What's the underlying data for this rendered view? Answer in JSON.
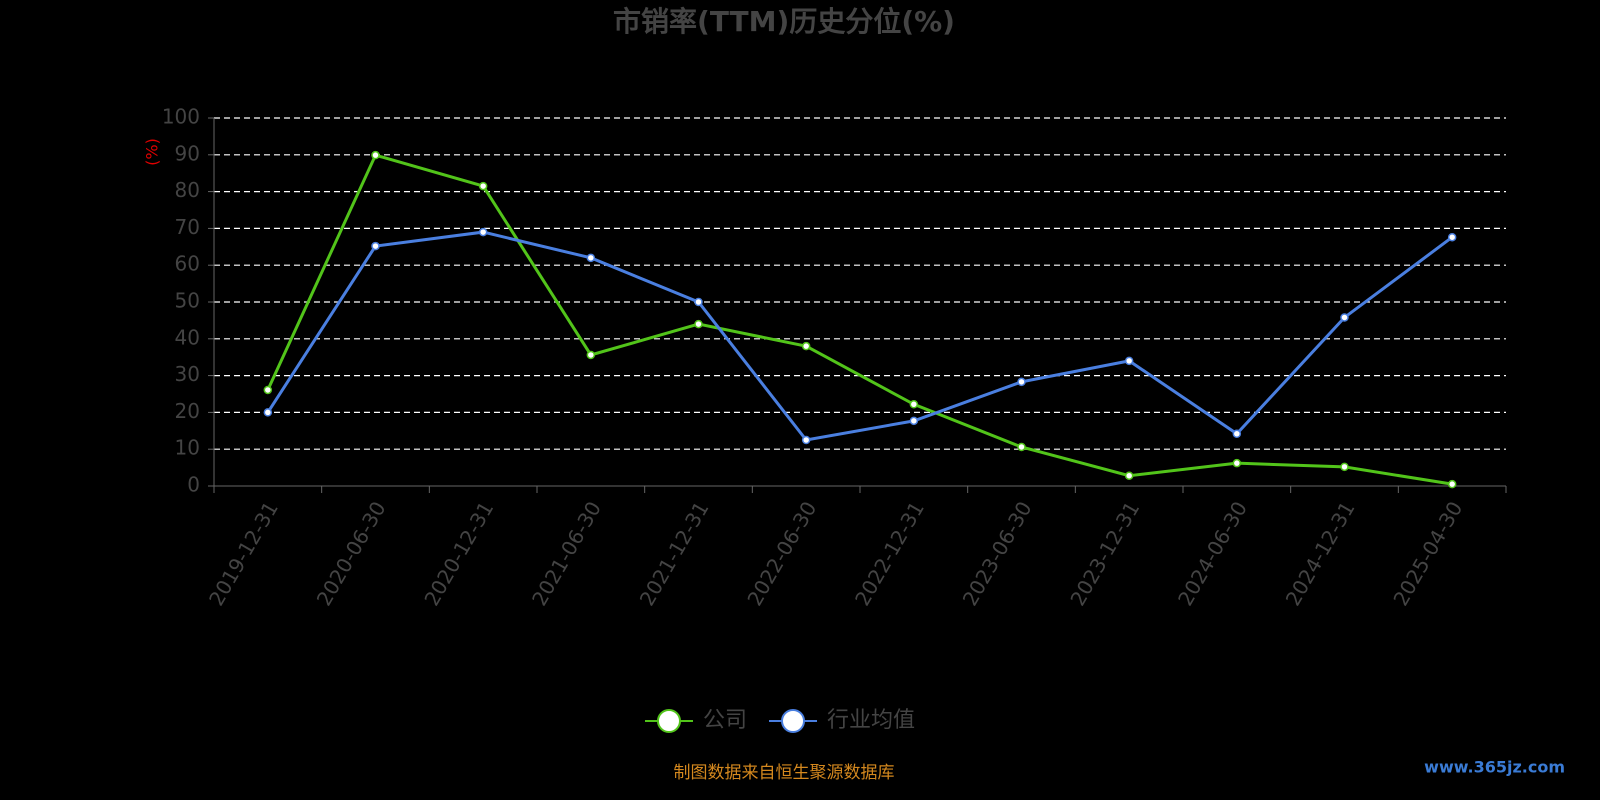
{
  "chart_data": {
    "type": "line",
    "title": "市销率(TTM)历史分位(%)",
    "y_label": "(%)",
    "categories": [
      "2019-12-31",
      "2020-06-30",
      "2020-12-31",
      "2021-06-30",
      "2021-12-31",
      "2022-06-30",
      "2022-12-31",
      "2023-06-30",
      "2023-12-31",
      "2024-06-30",
      "2024-12-31",
      "2025-04-30"
    ],
    "series": [
      {
        "name": "公司",
        "color": "#52c41a",
        "values": [
          26.1,
          89.9,
          81.5,
          35.6,
          44.0,
          38.0,
          22.2,
          10.6,
          2.8,
          6.2,
          5.2,
          0.5
        ]
      },
      {
        "name": "行业均值",
        "color": "#4a7fe0",
        "values": [
          20.0,
          65.2,
          69.0,
          62.0,
          50.0,
          12.5,
          17.7,
          28.3,
          34.0,
          14.2,
          45.8,
          67.6
        ]
      }
    ],
    "ylim": [
      0,
      100
    ],
    "yticks": [
      0,
      10,
      20,
      30,
      40,
      50,
      60,
      70,
      80,
      90,
      100
    ],
    "grid": true,
    "source": "制图数据来自恒生聚源数据库",
    "watermark": "www.365jz.com"
  }
}
